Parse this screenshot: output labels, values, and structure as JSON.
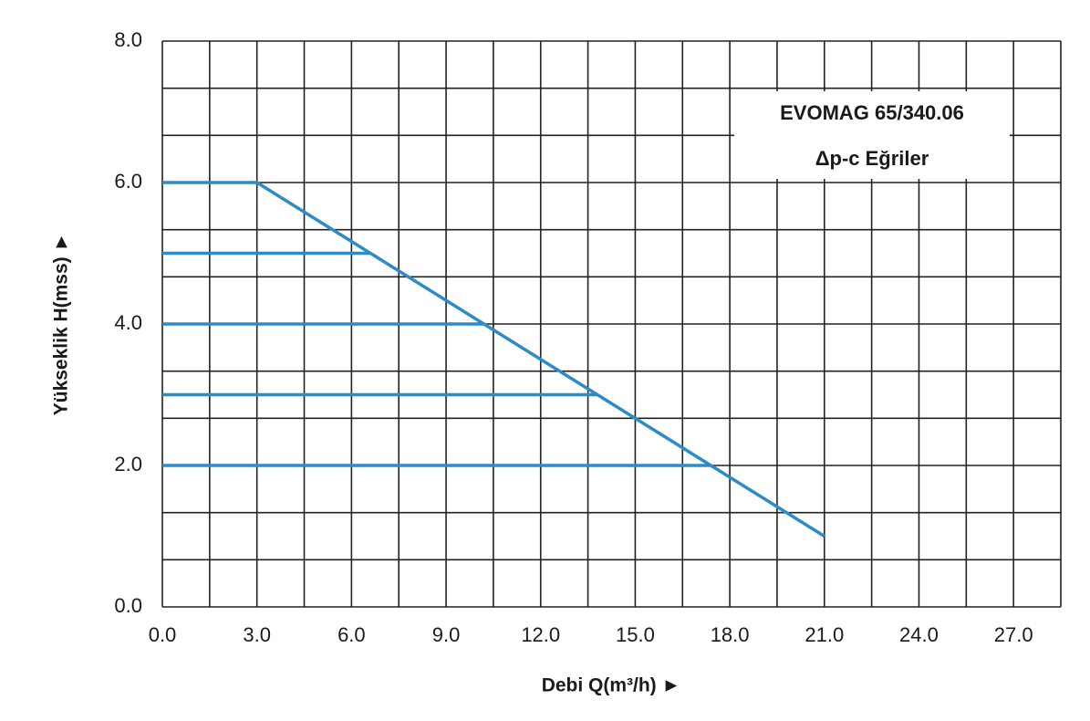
{
  "chart_data": {
    "type": "line",
    "title": [
      "EVOMAG 65/340.06",
      "Δp-c Eğriler"
    ],
    "x_label": "Debi Q(m³/h) ►",
    "y_label": "Yükseklik H(mss) ►",
    "xlim": [
      0,
      28.5
    ],
    "ylim": [
      0,
      8
    ],
    "xticks": [
      {
        "value": 0,
        "label": "0.0"
      },
      {
        "value": 3,
        "label": "3.0"
      },
      {
        "value": 6,
        "label": "6.0"
      },
      {
        "value": 9,
        "label": "9.0"
      },
      {
        "value": 12,
        "label": "12.0"
      },
      {
        "value": 15,
        "label": "15.0"
      },
      {
        "value": 18,
        "label": "18.0"
      },
      {
        "value": 21,
        "label": "21.0"
      },
      {
        "value": 24,
        "label": "24.0"
      },
      {
        "value": 27,
        "label": "27.0"
      }
    ],
    "yticks": [
      {
        "value": 0,
        "label": "0.0"
      },
      {
        "value": 2,
        "label": "2.0"
      },
      {
        "value": 4,
        "label": "4.0"
      },
      {
        "value": 6,
        "label": "6.0"
      },
      {
        "value": 8,
        "label": "8.0"
      }
    ],
    "x_grid": [
      0,
      1.5,
      3,
      4.5,
      6,
      7.5,
      9,
      10.5,
      12,
      13.5,
      15,
      16.5,
      18,
      19.5,
      21,
      22.5,
      24,
      25.5,
      27,
      28.5
    ],
    "y_grid": [
      0,
      0.667,
      1.333,
      2,
      2.667,
      3.333,
      4,
      4.667,
      5.333,
      6,
      6.667,
      7.333,
      8
    ],
    "grid": true,
    "series": [
      {
        "color": "#2e8cc4",
        "x": [
          0,
          3,
          21
        ],
        "values": [
          6,
          6,
          1
        ]
      },
      {
        "color": "#2e8cc4",
        "x": [
          0,
          6.6
        ],
        "values": [
          5,
          5
        ]
      },
      {
        "color": "#2e8cc4",
        "x": [
          0,
          10.2
        ],
        "values": [
          4,
          4
        ]
      },
      {
        "color": "#2e8cc4",
        "x": [
          0,
          13.8
        ],
        "values": [
          3,
          3
        ]
      },
      {
        "color": "#2e8cc4",
        "x": [
          0,
          17.4
        ],
        "values": [
          2,
          2
        ]
      }
    ]
  }
}
